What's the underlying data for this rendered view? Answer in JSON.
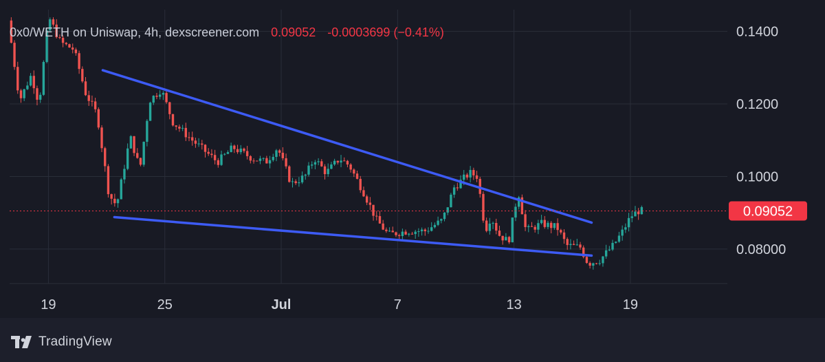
{
  "header": {
    "symbol": "0x0/WETH on Uniswap, 4h, dexscreener.com",
    "last_price": "0.09052",
    "change": "-0.0003699 (−0.41%)"
  },
  "brand": {
    "name": "TradingView",
    "logo_icon": "tradingview-logo-icon"
  },
  "colors": {
    "background": "#181a24",
    "up": "#26a69a",
    "down": "#ef5350",
    "trendline": "#3d5bf5",
    "price_badge": "#f23645",
    "axis_text": "#d1d4dc"
  },
  "chart_data": {
    "type": "candlestick",
    "title": "0x0/WETH on Uniswap, 4h, dexscreener.com",
    "ylim": [
      0.0705,
      0.146
    ],
    "y_ticks": [
      0.08,
      0.1,
      0.12,
      0.14
    ],
    "y_tick_labels": [
      "0.08000",
      "0.1000",
      "0.1200",
      "0.1400"
    ],
    "x_tick_labels": [
      "19",
      "25",
      "Jul",
      "7",
      "13",
      "19"
    ],
    "x_ticks_day": [
      0,
      6,
      12,
      18,
      24,
      30
    ],
    "xlim_day": [
      -2.0,
      35.0
    ],
    "grid": true,
    "last_price": 0.09052,
    "last_price_label": "0.09052",
    "change": -0.0003699,
    "change_pct": -0.41,
    "trendlines": [
      {
        "name": "upper",
        "start": {
          "day": 2.8,
          "price": 0.1293
        },
        "end": {
          "day": 28.0,
          "price": 0.0873
        }
      },
      {
        "name": "lower",
        "start": {
          "day": 3.4,
          "price": 0.0888
        },
        "end": {
          "day": 28.0,
          "price": 0.0782
        }
      }
    ],
    "segments": [
      {
        "d0": -2.0,
        "d1": -1.4,
        "p0": 0.143,
        "p1": 0.121
      },
      {
        "d0": -1.4,
        "d1": -0.8,
        "p0": 0.121,
        "p1": 0.128
      },
      {
        "d0": -0.8,
        "d1": -0.4,
        "p0": 0.128,
        "p1": 0.12
      },
      {
        "d0": -0.4,
        "d1": 0.1,
        "p0": 0.12,
        "p1": 0.144
      },
      {
        "d0": 0.1,
        "d1": 0.7,
        "p0": 0.144,
        "p1": 0.137
      },
      {
        "d0": 0.7,
        "d1": 1.4,
        "p0": 0.137,
        "p1": 0.135
      },
      {
        "d0": 1.4,
        "d1": 2.0,
        "p0": 0.135,
        "p1": 0.123
      },
      {
        "d0": 2.0,
        "d1": 2.6,
        "p0": 0.123,
        "p1": 0.117
      },
      {
        "d0": 2.6,
        "d1": 3.2,
        "p0": 0.117,
        "p1": 0.095
      },
      {
        "d0": 3.2,
        "d1": 3.6,
        "p0": 0.095,
        "p1": 0.092
      },
      {
        "d0": 3.6,
        "d1": 4.3,
        "p0": 0.092,
        "p1": 0.111
      },
      {
        "d0": 4.3,
        "d1": 4.8,
        "p0": 0.111,
        "p1": 0.102
      },
      {
        "d0": 4.8,
        "d1": 5.3,
        "p0": 0.102,
        "p1": 0.121
      },
      {
        "d0": 5.3,
        "d1": 5.9,
        "p0": 0.121,
        "p1": 0.124
      },
      {
        "d0": 5.9,
        "d1": 6.5,
        "p0": 0.124,
        "p1": 0.115
      },
      {
        "d0": 6.5,
        "d1": 7.5,
        "p0": 0.115,
        "p1": 0.11
      },
      {
        "d0": 7.5,
        "d1": 8.8,
        "p0": 0.11,
        "p1": 0.104
      },
      {
        "d0": 8.8,
        "d1": 9.6,
        "p0": 0.104,
        "p1": 0.108
      },
      {
        "d0": 9.6,
        "d1": 10.6,
        "p0": 0.108,
        "p1": 0.105
      },
      {
        "d0": 10.6,
        "d1": 11.3,
        "p0": 0.105,
        "p1": 0.104
      },
      {
        "d0": 11.3,
        "d1": 11.9,
        "p0": 0.104,
        "p1": 0.108
      },
      {
        "d0": 11.9,
        "d1": 12.6,
        "p0": 0.108,
        "p1": 0.098
      },
      {
        "d0": 12.6,
        "d1": 13.3,
        "p0": 0.098,
        "p1": 0.1
      },
      {
        "d0": 13.3,
        "d1": 13.8,
        "p0": 0.1,
        "p1": 0.105
      },
      {
        "d0": 13.8,
        "d1": 14.4,
        "p0": 0.105,
        "p1": 0.101
      },
      {
        "d0": 14.4,
        "d1": 15.1,
        "p0": 0.101,
        "p1": 0.105
      },
      {
        "d0": 15.1,
        "d1": 15.6,
        "p0": 0.105,
        "p1": 0.103
      },
      {
        "d0": 15.6,
        "d1": 16.3,
        "p0": 0.103,
        "p1": 0.096
      },
      {
        "d0": 16.3,
        "d1": 17.0,
        "p0": 0.096,
        "p1": 0.088
      },
      {
        "d0": 17.0,
        "d1": 17.6,
        "p0": 0.088,
        "p1": 0.084
      },
      {
        "d0": 17.6,
        "d1": 18.6,
        "p0": 0.084,
        "p1": 0.085
      },
      {
        "d0": 18.6,
        "d1": 19.5,
        "p0": 0.085,
        "p1": 0.085
      },
      {
        "d0": 19.5,
        "d1": 20.4,
        "p0": 0.085,
        "p1": 0.088
      },
      {
        "d0": 20.4,
        "d1": 21.0,
        "p0": 0.088,
        "p1": 0.097
      },
      {
        "d0": 21.0,
        "d1": 21.8,
        "p0": 0.097,
        "p1": 0.101
      },
      {
        "d0": 21.8,
        "d1": 22.2,
        "p0": 0.101,
        "p1": 0.1
      },
      {
        "d0": 22.2,
        "d1": 22.6,
        "p0": 0.1,
        "p1": 0.085
      },
      {
        "d0": 22.6,
        "d1": 22.9,
        "p0": 0.085,
        "p1": 0.089
      },
      {
        "d0": 22.9,
        "d1": 23.3,
        "p0": 0.089,
        "p1": 0.084
      },
      {
        "d0": 23.3,
        "d1": 23.8,
        "p0": 0.084,
        "p1": 0.082
      },
      {
        "d0": 23.8,
        "d1": 24.3,
        "p0": 0.082,
        "p1": 0.096
      },
      {
        "d0": 24.3,
        "d1": 24.7,
        "p0": 0.096,
        "p1": 0.085
      },
      {
        "d0": 24.7,
        "d1": 25.5,
        "p0": 0.085,
        "p1": 0.087
      },
      {
        "d0": 25.5,
        "d1": 26.3,
        "p0": 0.087,
        "p1": 0.086
      },
      {
        "d0": 26.3,
        "d1": 26.8,
        "p0": 0.086,
        "p1": 0.081
      },
      {
        "d0": 26.8,
        "d1": 27.5,
        "p0": 0.081,
        "p1": 0.0805
      },
      {
        "d0": 27.5,
        "d1": 27.9,
        "p0": 0.0805,
        "p1": 0.076
      },
      {
        "d0": 27.9,
        "d1": 28.5,
        "p0": 0.076,
        "p1": 0.077
      },
      {
        "d0": 28.5,
        "d1": 29.2,
        "p0": 0.077,
        "p1": 0.081
      },
      {
        "d0": 29.2,
        "d1": 29.7,
        "p0": 0.081,
        "p1": 0.085
      },
      {
        "d0": 29.7,
        "d1": 30.1,
        "p0": 0.085,
        "p1": 0.089
      },
      {
        "d0": 30.1,
        "d1": 30.5,
        "p0": 0.089,
        "p1": 0.0905
      }
    ]
  }
}
